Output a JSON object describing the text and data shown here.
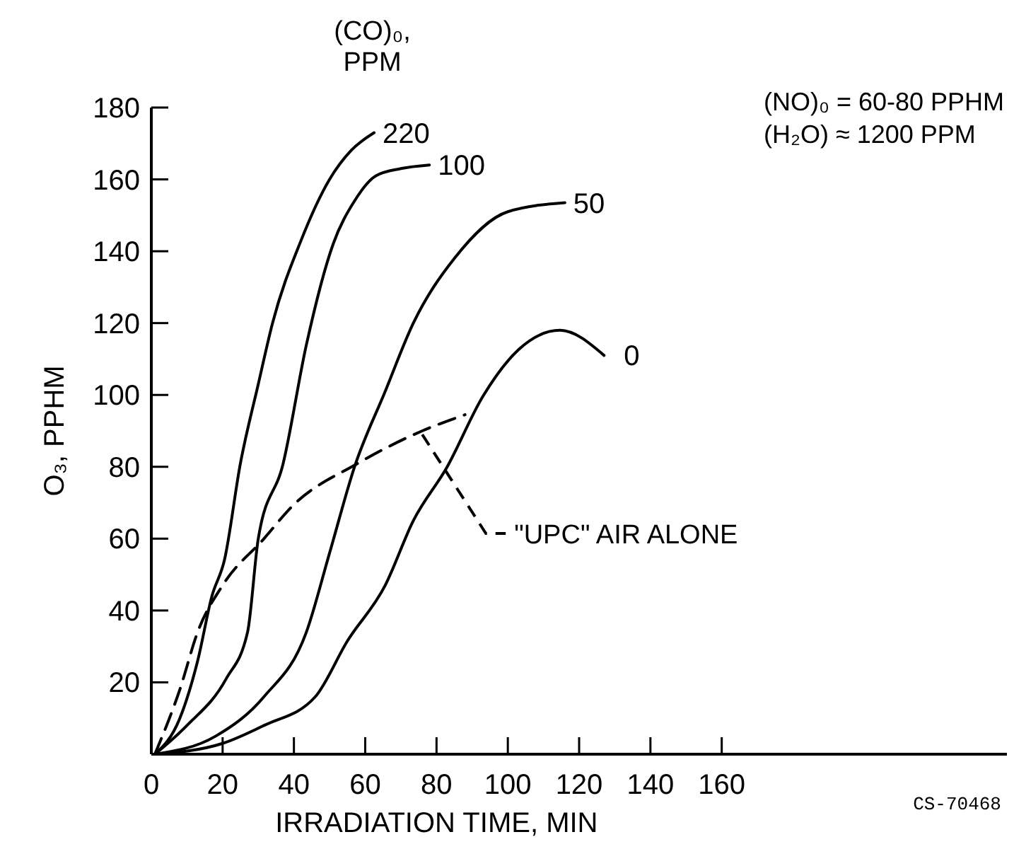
{
  "chart_data": {
    "type": "line",
    "xlabel": "IRRADIATION TIME, MIN",
    "ylabel": "O₃, PPHM",
    "legend_title": "(CO)₀, PPM",
    "xlim": [
      0,
      240
    ],
    "ylim": [
      0,
      180
    ],
    "xticks": [
      0,
      20,
      40,
      60,
      80,
      100,
      120,
      140,
      160
    ],
    "yticks": [
      20,
      40,
      60,
      80,
      100,
      120,
      140,
      160,
      180
    ],
    "grid": false,
    "marker": "none",
    "line_style": "solid",
    "series": [
      {
        "name": "220",
        "color": "#000000",
        "x": [
          1,
          8,
          13,
          17,
          20.5,
          25,
          30,
          34,
          42,
          50,
          56,
          62.5
        ],
        "values": [
          0,
          10,
          26,
          44,
          54,
          81,
          103,
          120,
          143,
          160,
          168,
          173
        ]
      },
      {
        "name": "100",
        "color": "#000000",
        "x": [
          1,
          10,
          21,
          27,
          30,
          37,
          43.5,
          51,
          57,
          63,
          70,
          78
        ],
        "values": [
          0,
          8,
          21,
          34,
          60,
          81,
          114,
          142,
          154,
          161,
          163,
          164
        ]
      },
      {
        "name": "50",
        "color": "#000000",
        "x": [
          1,
          18,
          31.6,
          43.5,
          50,
          57,
          65.6,
          73.5,
          85,
          100,
          116
        ],
        "values": [
          0,
          5,
          16,
          34,
          56,
          80,
          101,
          120,
          138,
          151,
          153.5
        ]
      },
      {
        "name": "0",
        "color": "#000000",
        "x": [
          1,
          20,
          31.6,
          46,
          55,
          65.6,
          73.5,
          83,
          93,
          103,
          114.6,
          127
        ],
        "values": [
          0,
          3,
          8,
          16,
          31.5,
          47,
          65,
          80,
          99.6,
          112.6,
          118,
          111
        ]
      },
      {
        "color": "#000000",
        "line_style": "dashed",
        "x": [
          1,
          8,
          13,
          20,
          31.6,
          39.5,
          58,
          76,
          88
        ],
        "values": [
          0,
          18,
          34,
          47,
          60,
          69,
          81,
          90,
          94.5
        ]
      }
    ],
    "annotations": [
      {
        "text": "\"UPC\" AIR ALONE",
        "x": 76,
        "y": 89
      },
      "(NO)₀ = 60-80 PPHM",
      "(H₂O) ≈ 1200 PPM",
      "CS-70468"
    ]
  }
}
